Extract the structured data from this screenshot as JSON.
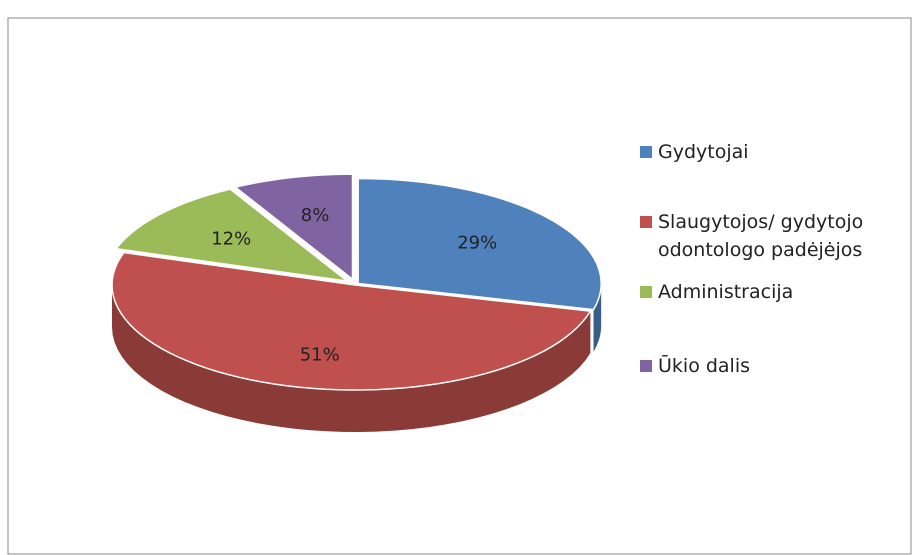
{
  "chart_data": {
    "type": "pie",
    "categories": [
      "Gydytojai",
      "Slaugytojos/ gydytojo odontologo padėjėjos",
      "Administracija",
      "Ūkio dalis"
    ],
    "values": [
      29,
      51,
      12,
      8
    ],
    "value_labels": [
      "29%",
      "51%",
      "12%",
      "8%"
    ],
    "colors": [
      "#4f81bd",
      "#c0504d",
      "#9bbb59",
      "#8064a2"
    ],
    "legend": "right"
  }
}
